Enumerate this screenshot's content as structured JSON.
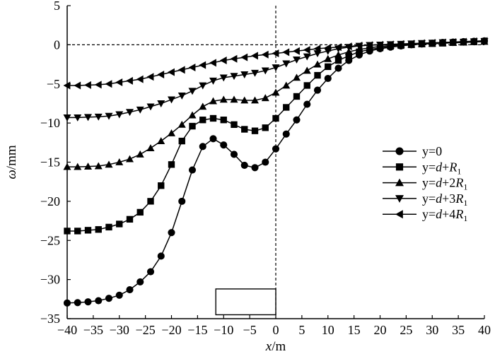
{
  "chart_data": {
    "type": "line",
    "xlabel": {
      "var": "x",
      "unit": "/m"
    },
    "ylabel": {
      "var": "ω",
      "unit": "/mm"
    },
    "xlim": [
      -40,
      40
    ],
    "ylim": [
      -35,
      5
    ],
    "xticks": [
      -40,
      -35,
      -30,
      -25,
      -20,
      -15,
      -10,
      -5,
      0,
      5,
      10,
      15,
      20,
      25,
      30,
      35,
      40
    ],
    "yticks": [
      5,
      0,
      -5,
      -10,
      -15,
      -20,
      -25,
      -30,
      -35
    ],
    "xtick_labels": [
      "−40",
      "−35",
      "−30",
      "−25",
      "−20",
      "−15",
      "−10",
      "−5",
      "0",
      "5",
      "10",
      "15",
      "20",
      "25",
      "30",
      "35",
      "40"
    ],
    "ytick_labels": [
      "5",
      "0",
      "−5",
      "−10",
      "−15",
      "−20",
      "−25",
      "−30",
      "−35"
    ],
    "reference_lines": {
      "horizontal_y": 0,
      "vertical_x": 0,
      "style": "dashed"
    },
    "annotation_rect": {
      "x": [
        -11.5,
        0
      ],
      "y": [
        -34.5,
        -31.2
      ]
    },
    "legend_position": "right",
    "x": [
      -40,
      -38,
      -36,
      -34,
      -32,
      -30,
      -28,
      -26,
      -24,
      -22,
      -20,
      -18,
      -16,
      -14,
      -12,
      -10,
      -8,
      -6,
      -4,
      -2,
      0,
      2,
      4,
      6,
      8,
      10,
      12,
      14,
      16,
      18,
      20,
      22,
      24,
      26,
      28,
      30,
      32,
      34,
      36,
      38,
      40
    ],
    "series": [
      {
        "name": "y=0",
        "label_parts": [
          {
            "t": "y=0"
          }
        ],
        "marker": "circle",
        "values": [
          -33.0,
          -32.95,
          -32.85,
          -32.7,
          -32.4,
          -32.0,
          -31.3,
          -30.3,
          -29.0,
          -27.0,
          -24.0,
          -20.0,
          -16.0,
          -13.0,
          -12.0,
          -12.8,
          -14.0,
          -15.4,
          -15.7,
          -15.0,
          -13.3,
          -11.4,
          -9.6,
          -7.6,
          -5.8,
          -4.3,
          -3.0,
          -2.0,
          -1.3,
          -0.8,
          -0.5,
          -0.3,
          -0.15,
          0.0,
          0.1,
          0.2,
          0.3,
          0.35,
          0.4,
          0.45,
          0.5
        ]
      },
      {
        "name": "y=d+R1",
        "label_parts": [
          {
            "t": "y="
          },
          {
            "t": "d",
            "i": true
          },
          {
            "t": "+"
          },
          {
            "t": "R",
            "i": true
          },
          {
            "t": "1",
            "sub": true
          }
        ],
        "marker": "square",
        "values": [
          -23.8,
          -23.8,
          -23.7,
          -23.6,
          -23.3,
          -22.9,
          -22.3,
          -21.4,
          -20.0,
          -18.0,
          -15.3,
          -12.3,
          -10.4,
          -9.6,
          -9.4,
          -9.6,
          -10.2,
          -10.8,
          -11.0,
          -10.6,
          -9.4,
          -8.0,
          -6.6,
          -5.2,
          -3.9,
          -2.8,
          -2.0,
          -1.4,
          -0.9,
          -0.6,
          -0.4,
          -0.2,
          -0.1,
          0.0,
          0.1,
          0.15,
          0.2,
          0.3,
          0.35,
          0.4,
          0.45
        ]
      },
      {
        "name": "y=d+2R1",
        "label_parts": [
          {
            "t": "y="
          },
          {
            "t": "d",
            "i": true
          },
          {
            "t": "+2"
          },
          {
            "t": "R",
            "i": true
          },
          {
            "t": "1",
            "sub": true
          }
        ],
        "marker": "triangle-up",
        "values": [
          -15.6,
          -15.6,
          -15.55,
          -15.5,
          -15.3,
          -15.0,
          -14.6,
          -14.0,
          -13.2,
          -12.3,
          -11.3,
          -10.2,
          -9.0,
          -7.9,
          -7.2,
          -7.0,
          -7.0,
          -7.1,
          -7.1,
          -6.8,
          -6.1,
          -5.2,
          -4.2,
          -3.3,
          -2.5,
          -1.8,
          -1.3,
          -0.9,
          -0.6,
          -0.4,
          -0.2,
          -0.1,
          0.0,
          0.05,
          0.1,
          0.15,
          0.2,
          0.25,
          0.3,
          0.35,
          0.4
        ]
      },
      {
        "name": "y=d+3R1",
        "label_parts": [
          {
            "t": "y="
          },
          {
            "t": "d",
            "i": true
          },
          {
            "t": "+3"
          },
          {
            "t": "R",
            "i": true
          },
          {
            "t": "1",
            "sub": true
          }
        ],
        "marker": "triangle-down",
        "values": [
          -9.3,
          -9.3,
          -9.25,
          -9.2,
          -9.1,
          -8.9,
          -8.6,
          -8.3,
          -7.9,
          -7.5,
          -7.0,
          -6.5,
          -5.9,
          -5.2,
          -4.6,
          -4.2,
          -4.0,
          -3.8,
          -3.6,
          -3.3,
          -2.9,
          -2.4,
          -1.9,
          -1.5,
          -1.1,
          -0.8,
          -0.5,
          -0.3,
          -0.15,
          -0.05,
          0.0,
          0.05,
          0.1,
          0.15,
          0.2,
          0.25,
          0.3,
          0.3,
          0.35,
          0.4,
          0.45
        ]
      },
      {
        "name": "y=d+4R1",
        "label_parts": [
          {
            "t": "y="
          },
          {
            "t": "d",
            "i": true
          },
          {
            "t": "+4"
          },
          {
            "t": "R",
            "i": true
          },
          {
            "t": "1",
            "sub": true
          }
        ],
        "marker": "triangle-left",
        "values": [
          -5.2,
          -5.2,
          -5.15,
          -5.1,
          -5.0,
          -4.8,
          -4.6,
          -4.4,
          -4.1,
          -3.8,
          -3.5,
          -3.2,
          -2.9,
          -2.6,
          -2.3,
          -2.0,
          -1.8,
          -1.6,
          -1.4,
          -1.25,
          -1.1,
          -0.95,
          -0.8,
          -0.65,
          -0.5,
          -0.4,
          -0.3,
          -0.2,
          -0.1,
          -0.05,
          0.0,
          0.05,
          0.1,
          0.15,
          0.2,
          0.25,
          0.3,
          0.35,
          0.4,
          0.45,
          0.5
        ]
      }
    ]
  }
}
